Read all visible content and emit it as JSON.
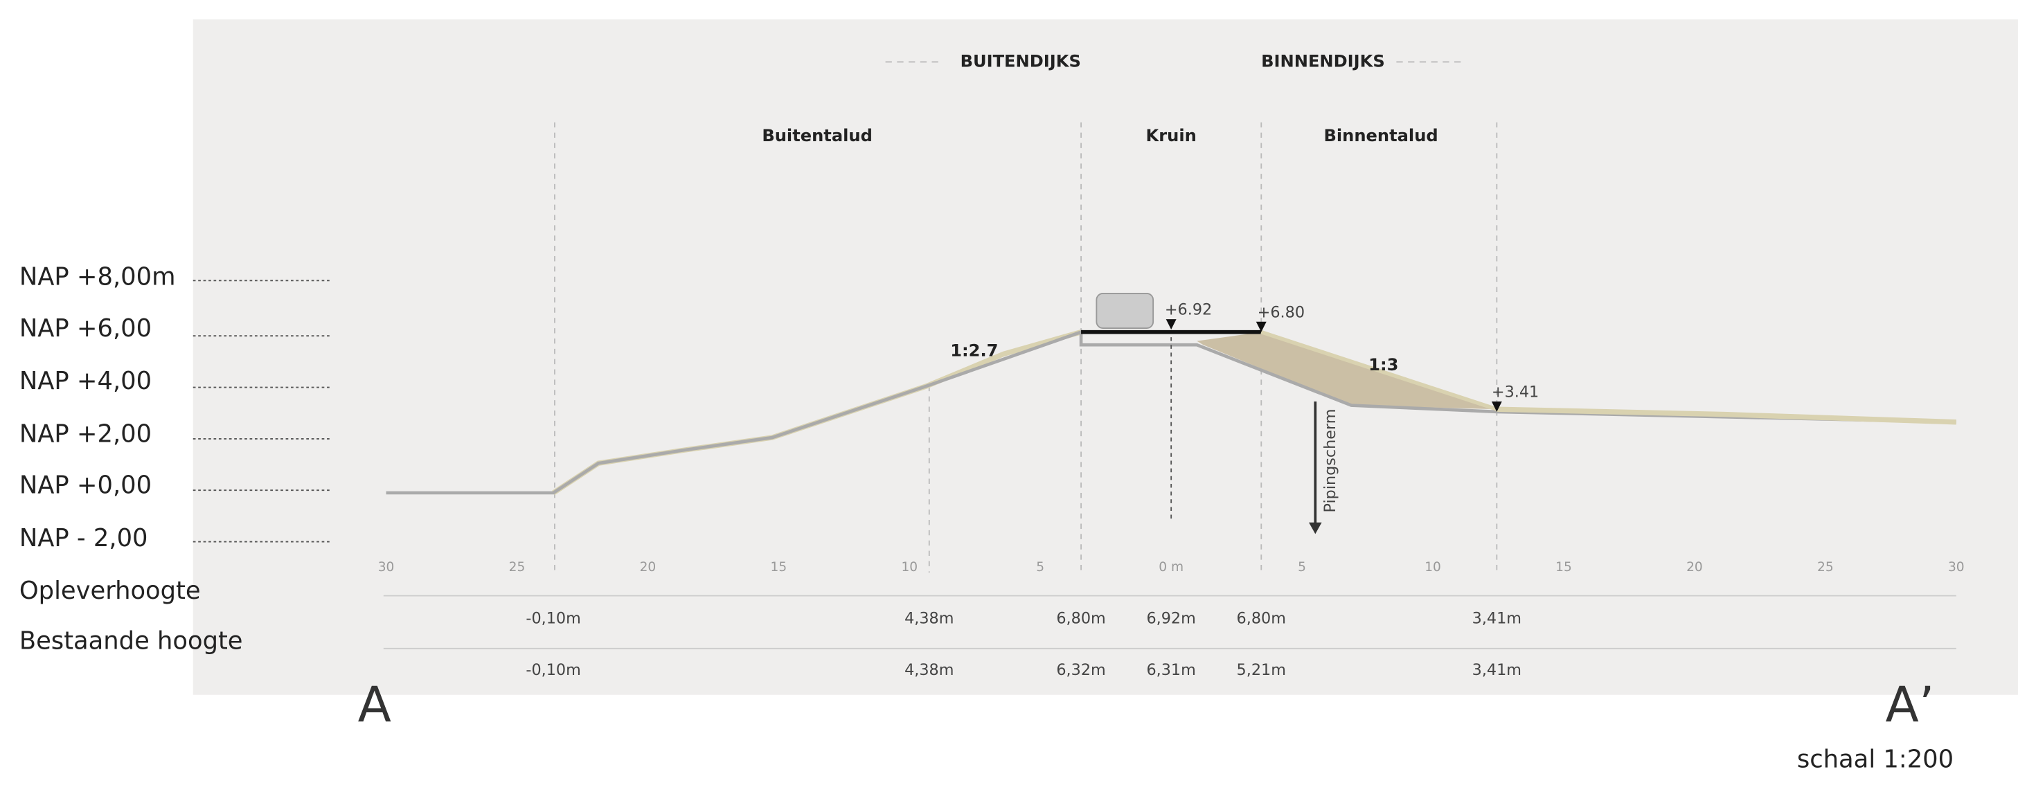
{
  "legend_header": {
    "outside": "BUITENDIJKS",
    "inside": "BINNENDIJKS"
  },
  "zones": [
    "Buitentalud",
    "Kruin",
    "Binnentalud"
  ],
  "nap_levels": [
    "NAP +8,00m",
    "NAP +6,00",
    "NAP +4,00",
    "NAP +2,00",
    "NAP +0,00",
    "NAP  - 2,00"
  ],
  "row_labels": [
    "Opleverhoogte",
    "Bestaande hoogte"
  ],
  "distance_ticks": [
    "30",
    "25",
    "20",
    "15",
    "10",
    "5",
    "0 m",
    "5",
    "10",
    "15",
    "20",
    "25",
    "30"
  ],
  "opleverhoogte": [
    "-0,10m",
    "4,38m",
    "6,80m",
    "6,92m",
    "6,80m",
    "3,41m"
  ],
  "bestaande_hoogte": [
    "-0,10m",
    "4,38m",
    "6,32m",
    "6,31m",
    "5,21m",
    "3,41m"
  ],
  "slopes": [
    "1:2.7",
    "1:3"
  ],
  "level_markers": [
    "+6.92",
    "+6.80",
    "+3.41"
  ],
  "piping_screen": "Pipingscherm",
  "section": {
    "start": "A",
    "end": "A’"
  },
  "scale": "schaal 1:200"
}
